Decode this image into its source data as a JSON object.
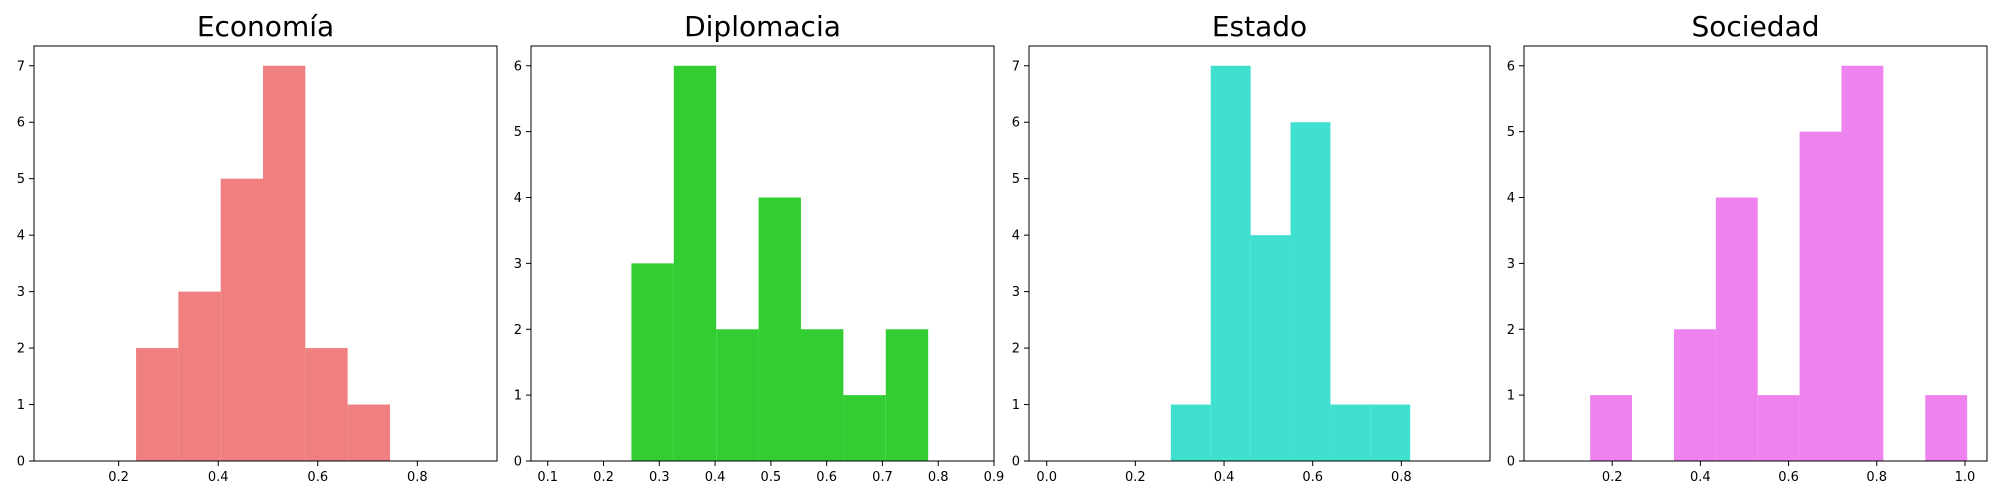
{
  "chart_data": [
    {
      "type": "bar",
      "title": "Economía",
      "color": "#f08080",
      "xlim": [
        0.03,
        0.96
      ],
      "ylim": [
        0,
        7.35
      ],
      "xticks": [
        0.2,
        0.4,
        0.6,
        0.8
      ],
      "xtick_labels": [
        "0.2",
        "0.4",
        "0.6",
        "0.8"
      ],
      "yticks": [
        0,
        1,
        2,
        3,
        4,
        5,
        6,
        7
      ],
      "ytick_labels": [
        "0",
        "1",
        "2",
        "3",
        "4",
        "5",
        "6",
        "7"
      ],
      "bins": [
        {
          "start": 0.235,
          "end": 0.32,
          "count": 2
        },
        {
          "start": 0.32,
          "end": 0.405,
          "count": 3
        },
        {
          "start": 0.405,
          "end": 0.49,
          "count": 5
        },
        {
          "start": 0.49,
          "end": 0.575,
          "count": 7
        },
        {
          "start": 0.575,
          "end": 0.66,
          "count": 2
        },
        {
          "start": 0.66,
          "end": 0.745,
          "count": 1
        }
      ]
    },
    {
      "type": "bar",
      "title": "Diplomacia",
      "color": "#32cd32",
      "xlim": [
        0.07,
        0.9
      ],
      "ylim": [
        0,
        6.3
      ],
      "xticks": [
        0.1,
        0.2,
        0.3,
        0.4,
        0.5,
        0.6,
        0.7,
        0.8,
        0.9
      ],
      "xtick_labels": [
        "0.1",
        "0.2",
        "0.3",
        "0.4",
        "0.5",
        "0.6",
        "0.7",
        "0.8",
        "0.9"
      ],
      "yticks": [
        0,
        1,
        2,
        3,
        4,
        5,
        6
      ],
      "ytick_labels": [
        "0",
        "1",
        "2",
        "3",
        "4",
        "5",
        "6"
      ],
      "bins": [
        {
          "start": 0.25,
          "end": 0.326,
          "count": 3
        },
        {
          "start": 0.326,
          "end": 0.402,
          "count": 6
        },
        {
          "start": 0.402,
          "end": 0.478,
          "count": 2
        },
        {
          "start": 0.478,
          "end": 0.554,
          "count": 4
        },
        {
          "start": 0.554,
          "end": 0.63,
          "count": 2
        },
        {
          "start": 0.63,
          "end": 0.706,
          "count": 1
        },
        {
          "start": 0.706,
          "end": 0.782,
          "count": 2
        }
      ]
    },
    {
      "type": "bar",
      "title": "Estado",
      "color": "#40e0d0",
      "xlim": [
        -0.04,
        1.0
      ],
      "ylim": [
        0,
        7.35
      ],
      "xticks": [
        0.0,
        0.2,
        0.4,
        0.6,
        0.8
      ],
      "xtick_labels": [
        "0.0",
        "0.2",
        "0.4",
        "0.6",
        "0.8"
      ],
      "yticks": [
        0,
        1,
        2,
        3,
        4,
        5,
        6,
        7
      ],
      "ytick_labels": [
        "0",
        "1",
        "2",
        "3",
        "4",
        "5",
        "6",
        "7"
      ],
      "bins": [
        {
          "start": 0.28,
          "end": 0.37,
          "count": 1
        },
        {
          "start": 0.37,
          "end": 0.46,
          "count": 7
        },
        {
          "start": 0.46,
          "end": 0.55,
          "count": 4
        },
        {
          "start": 0.55,
          "end": 0.64,
          "count": 6
        },
        {
          "start": 0.64,
          "end": 0.73,
          "count": 1
        },
        {
          "start": 0.73,
          "end": 0.82,
          "count": 1
        }
      ]
    },
    {
      "type": "bar",
      "title": "Sociedad",
      "color": "#ee82ee",
      "xlim": [
        0.0,
        1.05
      ],
      "ylim": [
        0,
        6.3
      ],
      "xticks": [
        0.2,
        0.4,
        0.6,
        0.8,
        1.0
      ],
      "xtick_labels": [
        "0.2",
        "0.4",
        "0.6",
        "0.8",
        "1.0"
      ],
      "yticks": [
        0,
        1,
        2,
        3,
        4,
        5,
        6
      ],
      "ytick_labels": [
        "0",
        "1",
        "2",
        "3",
        "4",
        "5",
        "6"
      ],
      "bins": [
        {
          "start": 0.15,
          "end": 0.245,
          "count": 1
        },
        {
          "start": 0.245,
          "end": 0.34,
          "count": 0
        },
        {
          "start": 0.34,
          "end": 0.435,
          "count": 2
        },
        {
          "start": 0.435,
          "end": 0.53,
          "count": 4
        },
        {
          "start": 0.53,
          "end": 0.625,
          "count": 1
        },
        {
          "start": 0.625,
          "end": 0.72,
          "count": 5
        },
        {
          "start": 0.72,
          "end": 0.815,
          "count": 6
        },
        {
          "start": 0.815,
          "end": 0.91,
          "count": 0
        },
        {
          "start": 0.91,
          "end": 1.005,
          "count": 1
        }
      ]
    }
  ]
}
